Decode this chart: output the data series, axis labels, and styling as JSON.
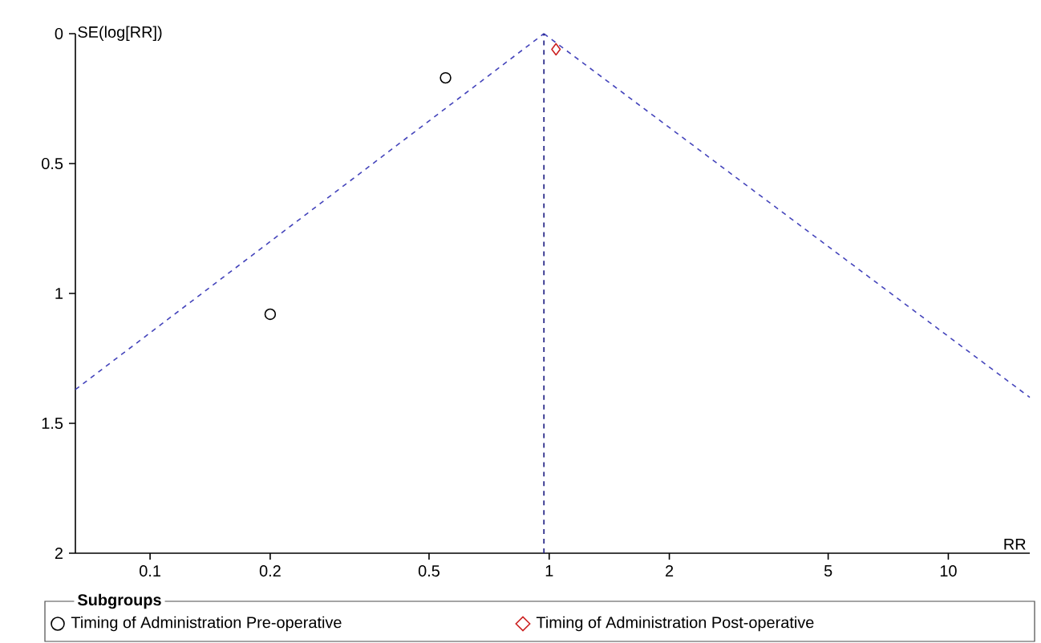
{
  "chart_data": {
    "type": "scatter",
    "xlabel": "RR",
    "ylabel": "SE(log[RR])",
    "legend_title": "Subgroups",
    "log": "x",
    "xlim": [
      0.065,
      16
    ],
    "ylim": [
      2,
      0
    ],
    "xticks": [
      0.1,
      0.2,
      0.5,
      1,
      2,
      5,
      10
    ],
    "yticks": [
      0,
      0.5,
      1,
      1.5,
      2
    ],
    "grid": false,
    "legend": "bottom",
    "series": [
      {
        "name": "Timing of Administration Pre-operative",
        "type": "scatter",
        "marker": "circle",
        "color": "#000000",
        "x": [
          0.55,
          0.2
        ],
        "values": [
          0.17,
          1.08
        ]
      },
      {
        "name": "Timing of Administration Post-operative",
        "type": "scatter",
        "marker": "diamond",
        "color": "#cc2222",
        "x": [
          1.04
        ],
        "values": [
          0.06
        ]
      },
      {
        "type": "line",
        "line_style": "dashed",
        "marker": "none",
        "color": "#4444bb",
        "x": [
          0.065,
          0.97
        ],
        "values": [
          1.37,
          0
        ]
      },
      {
        "type": "line",
        "line_style": "dashed",
        "marker": "none",
        "color": "#4444bb",
        "x": [
          0.97,
          16
        ],
        "values": [
          0,
          1.4
        ]
      }
    ],
    "ref_lines": [
      {
        "axis": "x",
        "value": 0.97,
        "color": "#1a1a80",
        "line_style": "dashed"
      }
    ]
  }
}
